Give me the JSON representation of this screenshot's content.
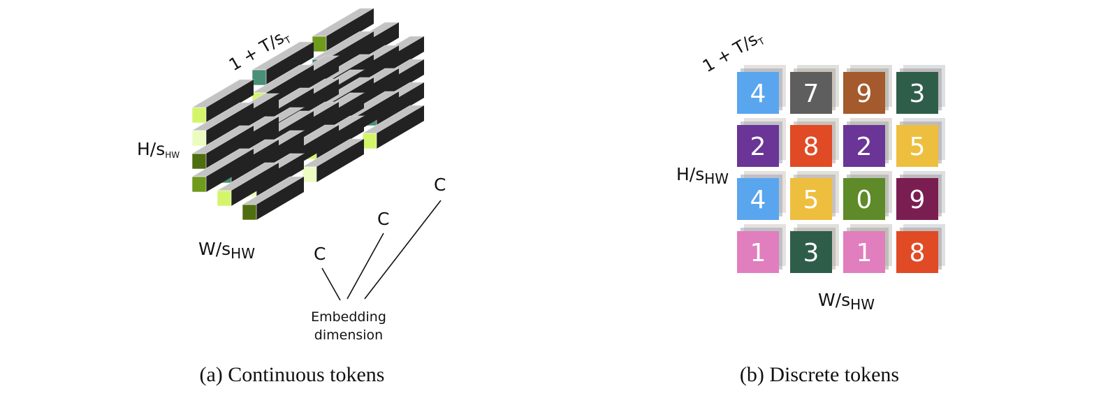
{
  "panel_a": {
    "caption": "(a) Continuous tokens",
    "label_t_main": "1 + T/s",
    "label_t_sub": "T",
    "label_h_main": "H/s",
    "label_h_sub": "HW",
    "label_w_main": "W/s",
    "label_w_sub": "HW",
    "c_labels": [
      "C",
      "C",
      "C"
    ],
    "embedding_line1": "Embedding",
    "embedding_line2": "dimension",
    "colors": {
      "top": "#c3c3c3",
      "side": "#222222",
      "face_teal": "#4a8f78",
      "face_lime": "#d4f56a",
      "face_pale": "#ecfcc0",
      "face_olive": "#6f9a1c",
      "face_dark_olive": "#4f6e10"
    }
  },
  "panel_b": {
    "caption": "(b) Discrete tokens",
    "label_t_main": "1 + T/s",
    "label_t_sub": "T",
    "label_h_main": "H/s",
    "label_h_sub": "HW",
    "label_w_main": "W/s",
    "label_w_sub": "HW",
    "tokens": [
      {
        "value": "4",
        "color": "#5aa6ee"
      },
      {
        "value": "7",
        "color": "#5e5e5e"
      },
      {
        "value": "9",
        "color": "#a45a2c"
      },
      {
        "value": "3",
        "color": "#2e5e4a"
      },
      {
        "value": "2",
        "color": "#6a3596"
      },
      {
        "value": "8",
        "color": "#e04a24"
      },
      {
        "value": "2",
        "color": "#6a3596"
      },
      {
        "value": "5",
        "color": "#eebe3e"
      },
      {
        "value": "4",
        "color": "#5aa6ee"
      },
      {
        "value": "5",
        "color": "#eebe3e"
      },
      {
        "value": "0",
        "color": "#5e8a2a"
      },
      {
        "value": "9",
        "color": "#7a1e52"
      },
      {
        "value": "1",
        "color": "#e17ebd"
      },
      {
        "value": "3",
        "color": "#2e5e4a"
      },
      {
        "value": "1",
        "color": "#e17ebd"
      },
      {
        "value": "8",
        "color": "#e04a24"
      }
    ]
  }
}
